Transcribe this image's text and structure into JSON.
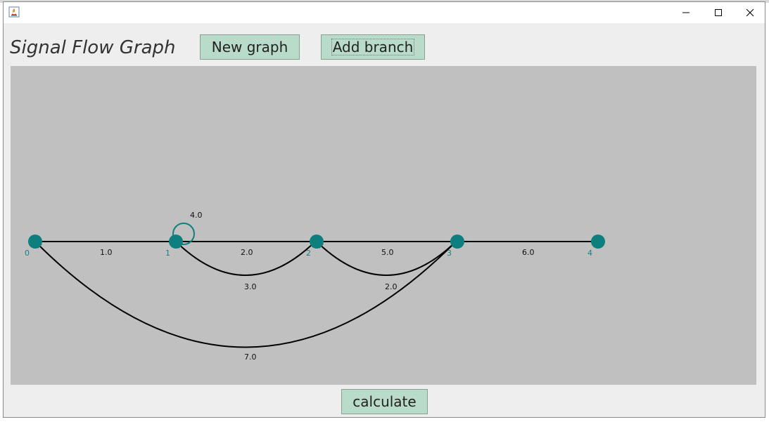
{
  "window": {
    "controls": [
      "minimize-icon",
      "maximize-icon",
      "close-icon"
    ]
  },
  "app": {
    "title": "Signal Flow Graph",
    "new_graph_label": "New graph",
    "add_branch_label": "Add branch",
    "calculate_label": "calculate"
  },
  "colors": {
    "node": "#0e7f7f",
    "edge": "#000000",
    "canvas": "#c0c0c0",
    "button": "#b9dbc9"
  },
  "graph": {
    "nodes": [
      "0",
      "1",
      "2",
      "3",
      "4"
    ],
    "branches": [
      {
        "from": "0",
        "to": "1",
        "gain": "1.0"
      },
      {
        "from": "1",
        "to": "2",
        "gain": "2.0"
      },
      {
        "from": "2",
        "to": "3",
        "gain": "5.0"
      },
      {
        "from": "3",
        "to": "4",
        "gain": "6.0"
      },
      {
        "from": "1",
        "to": "1",
        "gain": "4.0"
      },
      {
        "from": "2",
        "to": "1",
        "gain": "3.0"
      },
      {
        "from": "3",
        "to": "2",
        "gain": "2.0"
      },
      {
        "from": "3",
        "to": "0",
        "gain": "7.0"
      }
    ]
  }
}
